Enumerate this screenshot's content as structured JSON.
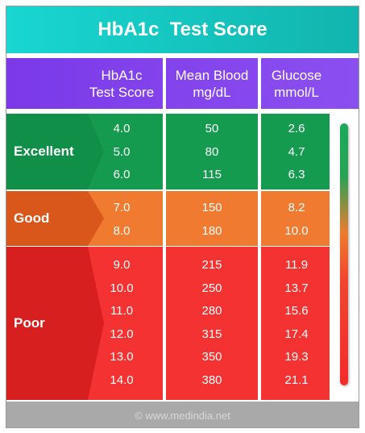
{
  "title": "HbA1c  Test Score",
  "headers": [
    {
      "line1": "HbA1c",
      "line2": "Test Score"
    },
    {
      "line1": "Mean Blood",
      "line2": "mg/dL"
    },
    {
      "line1": "Glucose",
      "line2": "mmol/L"
    }
  ],
  "bands": [
    {
      "label": "Excellent",
      "color": "#149b4f",
      "arrow_color": "#0f8f47",
      "rows": [
        {
          "hba1c": "4.0",
          "mgdl": "50",
          "mmol": "2.6"
        },
        {
          "hba1c": "5.0",
          "mgdl": "80",
          "mmol": "4.7"
        },
        {
          "hba1c": "6.0",
          "mgdl": "115",
          "mmol": "6.3"
        }
      ]
    },
    {
      "label": "Good",
      "color": "#f07a30",
      "arrow_color": "#d9571b",
      "rows": [
        {
          "hba1c": "7.0",
          "mgdl": "150",
          "mmol": "8.2"
        },
        {
          "hba1c": "8.0",
          "mgdl": "180",
          "mmol": "10.0"
        }
      ]
    },
    {
      "label": "Poor",
      "color": "#f43232",
      "arrow_color": "#d81f1f",
      "rows": [
        {
          "hba1c": "9.0",
          "mgdl": "215",
          "mmol": "11.9"
        },
        {
          "hba1c": "10.0",
          "mgdl": "250",
          "mmol": "13.7"
        },
        {
          "hba1c": "11.0",
          "mgdl": "280",
          "mmol": "15.6"
        },
        {
          "hba1c": "12.0",
          "mgdl": "315",
          "mmol": "17.4"
        },
        {
          "hba1c": "13.0",
          "mgdl": "350",
          "mmol": "19.3"
        },
        {
          "hba1c": "14.0",
          "mgdl": "380",
          "mmol": "21.1"
        }
      ]
    }
  ],
  "footer": "© www.medindia.net"
}
